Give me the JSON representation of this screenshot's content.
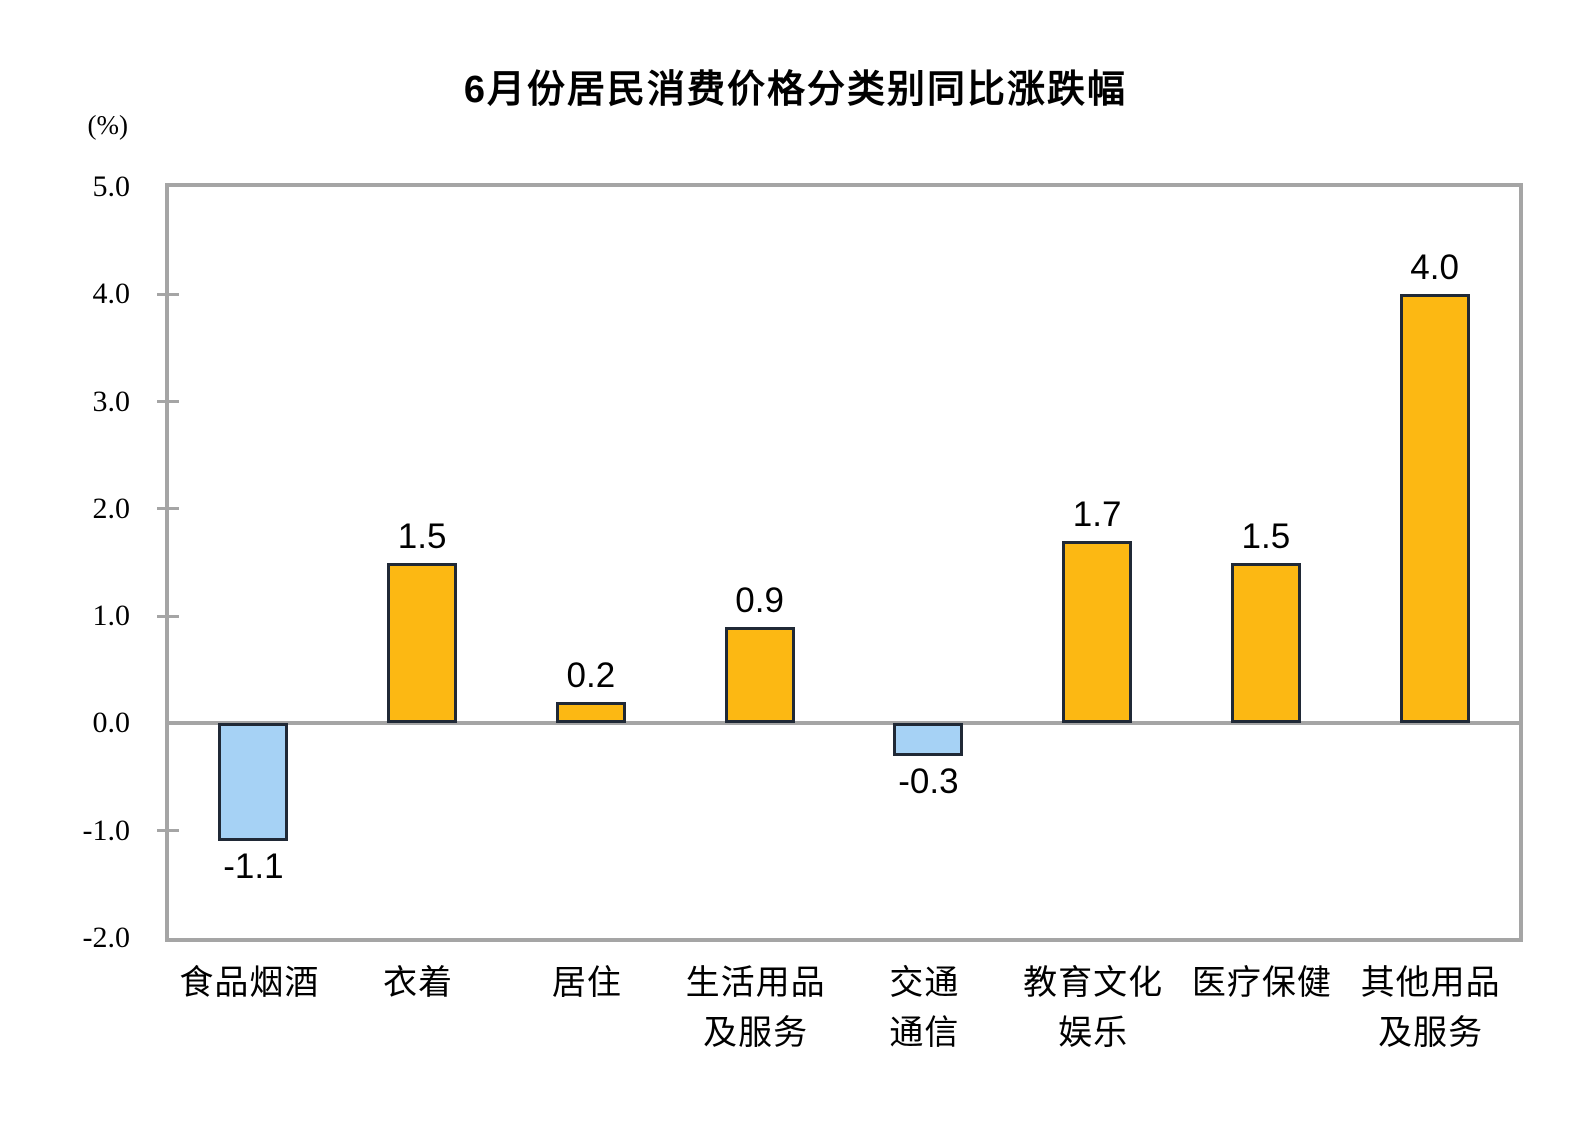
{
  "chart_data": {
    "type": "bar",
    "title": "6月份居民消费价格分类别同比涨跌幅",
    "unit": "(%)",
    "categories": [
      "食品烟酒",
      "衣着",
      "居住",
      "生活用品及服务",
      "交通通信",
      "教育文化娱乐",
      "医疗保健",
      "其他用品及服务"
    ],
    "category_label_lines": [
      [
        "食品烟酒"
      ],
      [
        "衣着"
      ],
      [
        "居住"
      ],
      [
        "生活用品",
        "及服务"
      ],
      [
        "交通",
        "通信"
      ],
      [
        "教育文化",
        "娱乐"
      ],
      [
        "医疗保健"
      ],
      [
        "其他用品",
        "及服务"
      ]
    ],
    "values": [
      -1.1,
      1.5,
      0.2,
      0.9,
      -0.3,
      1.7,
      1.5,
      4.0
    ],
    "value_labels": [
      "-1.1",
      "1.5",
      "0.2",
      "0.9",
      "-0.3",
      "1.7",
      "1.5",
      "4.0"
    ],
    "ylim": [
      -2.0,
      5.0
    ],
    "yticks": [
      5.0,
      4.0,
      3.0,
      2.0,
      1.0,
      0.0,
      -1.0,
      -2.0
    ],
    "ytick_labels": [
      "5.0",
      "4.0",
      "3.0",
      "2.0",
      "1.0",
      "0.0",
      "-1.0",
      "-2.0"
    ],
    "grid": false,
    "legend": "none",
    "colors": {
      "positive_bar": "#FCB813",
      "negative_bar": "#A6D2F5",
      "bar_border": "#202936",
      "axis_line": "#A5A5A5",
      "text": "#000000",
      "background": "#FFFFFF"
    }
  }
}
